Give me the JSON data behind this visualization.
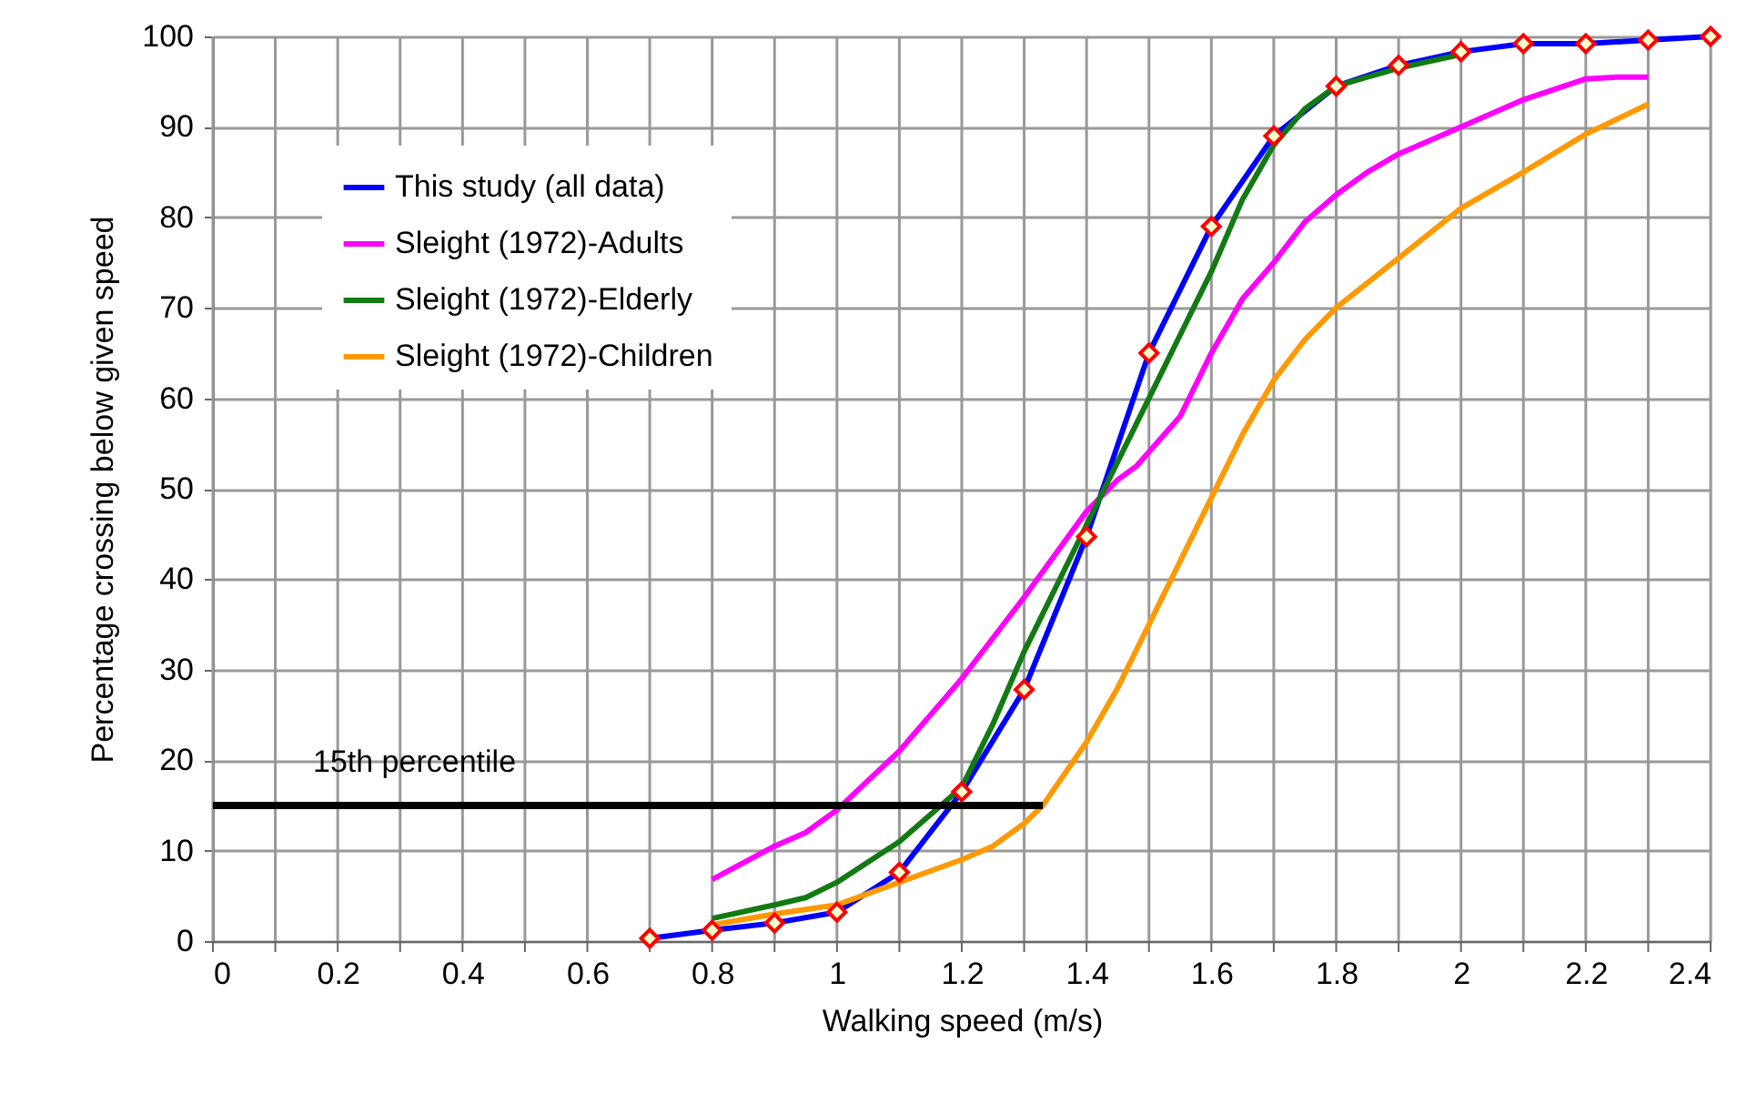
{
  "chart_data": {
    "type": "line",
    "xlabel": "Walking speed (m/s)",
    "ylabel": "Percentage crossing below given speed",
    "xlim": [
      0,
      2.4
    ],
    "ylim": [
      0,
      100
    ],
    "xticks": [
      0,
      {
        "value": 0.1,
        "label": null
      },
      0.2,
      {
        "value": 0.3,
        "label": null
      },
      0.4,
      {
        "value": 0.5,
        "label": null
      },
      0.6,
      {
        "value": 0.7,
        "label": null
      },
      0.8,
      {
        "value": 0.9,
        "label": null
      },
      1,
      {
        "value": 1.1,
        "label": null
      },
      1.2,
      {
        "value": 1.3,
        "label": null
      },
      1.4,
      {
        "value": 1.5,
        "label": null
      },
      1.6,
      {
        "value": 1.7,
        "label": null
      },
      1.8,
      {
        "value": 1.9,
        "label": null
      },
      2,
      {
        "value": 2.1,
        "label": null
      },
      2.2,
      {
        "value": 2.3,
        "label": null
      },
      2.4
    ],
    "yticks": [
      0,
      10,
      20,
      30,
      40,
      50,
      60,
      70,
      80,
      90,
      100
    ],
    "grid": true,
    "legend": "top left",
    "annotations": [
      "15th percentile"
    ],
    "series": [
      {
        "name": "This study (all data)",
        "color": "#0000ff",
        "marker": "diamond",
        "x": [
          0.7,
          0.8,
          0.9,
          1.0,
          1.1,
          1.2,
          1.3,
          1.4,
          1.5,
          1.6,
          1.7,
          1.8,
          1.9,
          2.0,
          2.1,
          2.2,
          2.3,
          2.4
        ],
        "values": [
          0.3,
          1.2,
          2,
          3.2,
          7.6,
          16.5,
          27.8,
          44.7,
          65,
          79,
          89,
          94.5,
          96.8,
          98.3,
          99.2,
          99.2,
          99.6,
          100
        ]
      },
      {
        "name": "Sleight (1972)-Adults",
        "color": "#ff00ff",
        "marker": "none",
        "x": [
          0.8,
          0.9,
          0.95,
          1.0,
          1.1,
          1.2,
          1.3,
          1.4,
          1.45,
          1.48,
          1.55,
          1.6,
          1.65,
          1.7,
          1.75,
          1.8,
          1.85,
          1.9,
          2.0,
          2.1,
          2.2,
          2.25,
          2.3
        ],
        "values": [
          6.8,
          10.5,
          12,
          14.5,
          21,
          29,
          38,
          47.5,
          51,
          52.5,
          58,
          65,
          71,
          75,
          79.5,
          82.5,
          85,
          87,
          90,
          93,
          95.3,
          95.5,
          95.5
        ]
      },
      {
        "name": "Sleight (1972)-Elderly",
        "color": "#127a12",
        "marker": "none",
        "x": [
          0.8,
          0.9,
          0.95,
          1.0,
          1.1,
          1.2,
          1.25,
          1.3,
          1.4,
          1.5,
          1.55,
          1.6,
          1.65,
          1.7,
          1.75,
          1.8,
          1.85,
          1.9,
          2.0
        ],
        "values": [
          2.5,
          4,
          4.8,
          6.5,
          11,
          17,
          24,
          32,
          46,
          60,
          67,
          74,
          82,
          88,
          92,
          94.5,
          95.5,
          96.5,
          98
        ]
      },
      {
        "name": "Sleight (1972)-Children",
        "color": "#ff9900",
        "marker": "none",
        "x": [
          0.8,
          0.9,
          1.0,
          1.1,
          1.2,
          1.25,
          1.3,
          1.33,
          1.4,
          1.45,
          1.5,
          1.55,
          1.6,
          1.65,
          1.7,
          1.75,
          1.8,
          1.9,
          2.0,
          2.1,
          2.2,
          2.3
        ],
        "values": [
          1.8,
          3,
          4,
          6.5,
          9,
          10.5,
          13,
          15,
          22,
          28,
          35,
          42,
          49,
          56,
          62,
          66.5,
          70,
          75.5,
          81,
          85,
          89.2,
          92.5
        ]
      },
      {
        "color": "#000000",
        "marker": "none",
        "x": [
          0,
          1.33
        ],
        "values": [
          15,
          15
        ]
      }
    ]
  }
}
